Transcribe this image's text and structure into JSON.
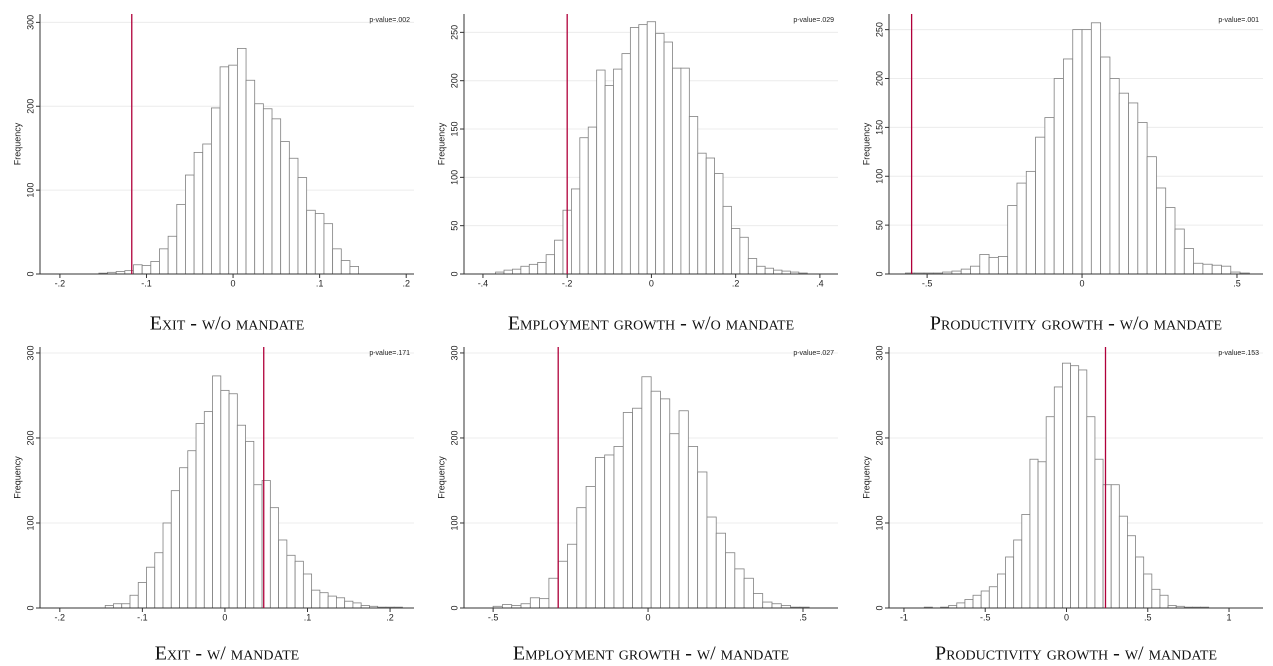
{
  "chart_data": [
    {
      "type": "histogram",
      "title": "Exit - w/o mandate",
      "ylabel": "Frequency",
      "annotation": "p-value=.002",
      "bins": [
        -0.155,
        -0.145,
        -0.135,
        -0.125,
        -0.115,
        -0.105,
        -0.095,
        -0.085,
        -0.075,
        -0.065,
        -0.055,
        -0.045,
        -0.035,
        -0.025,
        -0.015,
        -0.005,
        0.005,
        0.015,
        0.025,
        0.035,
        0.045,
        0.055,
        0.065,
        0.075,
        0.085,
        0.095,
        0.105,
        0.115,
        0.125,
        0.135,
        0.145
      ],
      "values": [
        1,
        2,
        3,
        4,
        11,
        10,
        15,
        30,
        45,
        83,
        118,
        145,
        155,
        198,
        247,
        249,
        269,
        231,
        203,
        197,
        185,
        158,
        138,
        115,
        76,
        72,
        60,
        30,
        16,
        9
      ],
      "vline": -0.117,
      "xlim": [
        -0.223,
        0.209
      ],
      "xticks": [
        {
          "value": -0.2,
          "label": "-.2"
        },
        {
          "value": -0.1,
          "label": "-.1"
        },
        0,
        {
          "value": 0.1,
          "label": ".1"
        },
        {
          "value": 0.2,
          "label": ".2"
        }
      ],
      "ylim": [
        0,
        310
      ],
      "yticks": [
        0,
        100,
        200,
        300
      ],
      "grid": true,
      "color": "#ffffff",
      "edge_color": "#808080",
      "line_color": "#b0003a"
    },
    {
      "type": "histogram",
      "title": "Employment growth - w/o mandate",
      "ylabel": "Frequency",
      "annotation": "p-value=.029",
      "bins": [
        -0.37,
        -0.35,
        -0.33,
        -0.31,
        -0.29,
        -0.27,
        -0.25,
        -0.23,
        -0.21,
        -0.19,
        -0.17,
        -0.15,
        -0.13,
        -0.11,
        -0.09,
        -0.07,
        -0.05,
        -0.03,
        -0.01,
        0.01,
        0.03,
        0.05,
        0.07,
        0.09,
        0.11,
        0.13,
        0.15,
        0.17,
        0.19,
        0.21,
        0.23,
        0.25,
        0.27,
        0.29,
        0.31,
        0.33,
        0.35,
        0.37
      ],
      "values": [
        2,
        4,
        5,
        8,
        10,
        12,
        20,
        35,
        66,
        88,
        141,
        152,
        211,
        195,
        212,
        228,
        255,
        258,
        261,
        249,
        240,
        213,
        213,
        163,
        125,
        120,
        104,
        70,
        47,
        38,
        16,
        8,
        6,
        4,
        3,
        2,
        1
      ],
      "vline": -0.2,
      "xlim": [
        -0.445,
        0.443
      ],
      "xticks": [
        {
          "value": -0.4,
          "label": "-.4"
        },
        {
          "value": -0.2,
          "label": "-.2"
        },
        0,
        {
          "value": 0.2,
          "label": ".2"
        },
        {
          "value": 0.4,
          "label": ".4"
        }
      ],
      "ylim": [
        0,
        269
      ],
      "yticks": [
        0,
        50,
        100,
        150,
        200,
        250
      ],
      "grid": true,
      "color": "#ffffff",
      "edge_color": "#808080",
      "line_color": "#b0003a"
    },
    {
      "type": "histogram",
      "title": "Productivity growth - w/o mandate",
      "ylabel": "Frequency",
      "annotation": "p-value=.001",
      "bins": [
        -0.6,
        -0.57,
        -0.54,
        -0.51,
        -0.48,
        -0.45,
        -0.42,
        -0.39,
        -0.36,
        -0.33,
        -0.3,
        -0.27,
        -0.24,
        -0.21,
        -0.18,
        -0.15,
        -0.12,
        -0.09,
        -0.06,
        -0.03,
        0,
        0.03,
        0.06,
        0.09,
        0.12,
        0.15,
        0.18,
        0.21,
        0.24,
        0.27,
        0.3,
        0.33,
        0.36,
        0.39,
        0.42,
        0.45,
        0.48,
        0.51,
        0.54
      ],
      "values": [
        0,
        1,
        1,
        1,
        1,
        2,
        3,
        5,
        8,
        20,
        17,
        18,
        70,
        93,
        105,
        140,
        160,
        200,
        220,
        250,
        250,
        257,
        222,
        200,
        185,
        175,
        155,
        120,
        88,
        68,
        46,
        26,
        11,
        10,
        9,
        8,
        2,
        1
      ],
      "vline": -0.55,
      "xlim": [
        -0.623,
        0.584
      ],
      "xticks": [
        {
          "value": -0.5,
          "label": "-.5"
        },
        0,
        {
          "value": 0.5,
          "label": ".5"
        }
      ],
      "ylim": [
        0,
        266
      ],
      "yticks": [
        0,
        50,
        100,
        150,
        200,
        250
      ],
      "grid": true,
      "color": "#ffffff",
      "edge_color": "#808080",
      "line_color": "#b0003a"
    },
    {
      "type": "histogram",
      "title": "Exit - w/ mandate",
      "ylabel": "Frequency",
      "annotation": "p-value=.171",
      "bins": [
        -0.145,
        -0.135,
        -0.125,
        -0.115,
        -0.105,
        -0.095,
        -0.085,
        -0.075,
        -0.065,
        -0.055,
        -0.045,
        -0.035,
        -0.025,
        -0.015,
        -0.005,
        0.005,
        0.015,
        0.025,
        0.035,
        0.045,
        0.055,
        0.065,
        0.075,
        0.085,
        0.095,
        0.105,
        0.115,
        0.125,
        0.135,
        0.145,
        0.155,
        0.165,
        0.175,
        0.185,
        0.195,
        0.205,
        0.215
      ],
      "values": [
        3,
        5,
        5,
        15,
        30,
        48,
        65,
        100,
        138,
        165,
        185,
        217,
        231,
        273,
        256,
        252,
        215,
        196,
        145,
        150,
        118,
        80,
        62,
        55,
        40,
        21,
        18,
        14,
        12,
        8,
        6,
        3,
        2,
        1,
        1,
        1
      ],
      "vline": 0.047,
      "xlim": [
        -0.224,
        0.229
      ],
      "xticks": [
        {
          "value": -0.2,
          "label": "-.2"
        },
        {
          "value": -0.1,
          "label": "-.1"
        },
        0,
        {
          "value": 0.1,
          "label": ".1"
        },
        {
          "value": 0.2,
          "label": ".2"
        }
      ],
      "ylim": [
        0,
        307
      ],
      "yticks": [
        0,
        100,
        200,
        300
      ],
      "grid": true,
      "color": "#ffffff",
      "edge_color": "#808080",
      "line_color": "#b0003a"
    },
    {
      "type": "histogram",
      "title": "Employment growth - w/ mandate",
      "ylabel": "Frequency",
      "annotation": "p-value=.027",
      "bins": [
        -0.5,
        -0.47,
        -0.44,
        -0.41,
        -0.38,
        -0.35,
        -0.32,
        -0.29,
        -0.26,
        -0.23,
        -0.2,
        -0.17,
        -0.14,
        -0.11,
        -0.08,
        -0.05,
        -0.02,
        0.01,
        0.04,
        0.07,
        0.1,
        0.13,
        0.16,
        0.19,
        0.22,
        0.25,
        0.28,
        0.31,
        0.34,
        0.37,
        0.4,
        0.43,
        0.46,
        0.49,
        0.52
      ],
      "values": [
        2,
        4,
        3,
        5,
        12,
        11,
        35,
        55,
        75,
        118,
        143,
        177,
        180,
        190,
        230,
        235,
        272,
        255,
        246,
        205,
        232,
        190,
        160,
        107,
        88,
        65,
        46,
        35,
        17,
        7,
        5,
        3,
        1,
        1
      ],
      "vline": -0.29,
      "xlim": [
        -0.594,
        0.613
      ],
      "xticks": [
        {
          "value": -0.5,
          "label": "-.5"
        },
        0,
        {
          "value": 0.5,
          "label": ".5"
        }
      ],
      "ylim": [
        0,
        307
      ],
      "yticks": [
        0,
        100,
        200,
        300
      ],
      "grid": true,
      "color": "#ffffff",
      "edge_color": "#808080",
      "line_color": "#b0003a"
    },
    {
      "type": "histogram",
      "title": "Productivity growth - w/ mandate",
      "ylabel": "Frequency",
      "annotation": "p-value=.153",
      "bins": [
        -0.875,
        -0.825,
        -0.775,
        -0.725,
        -0.675,
        -0.625,
        -0.575,
        -0.525,
        -0.475,
        -0.425,
        -0.375,
        -0.325,
        -0.275,
        -0.225,
        -0.175,
        -0.125,
        -0.075,
        -0.025,
        0.025,
        0.075,
        0.125,
        0.175,
        0.225,
        0.275,
        0.325,
        0.375,
        0.425,
        0.475,
        0.525,
        0.575,
        0.625,
        0.675,
        0.725,
        0.775,
        0.825,
        0.875
      ],
      "values": [
        1,
        0,
        1,
        3,
        6,
        10,
        15,
        20,
        25,
        40,
        60,
        80,
        110,
        175,
        172,
        225,
        260,
        288,
        285,
        280,
        225,
        175,
        145,
        145,
        108,
        85,
        60,
        40,
        22,
        15,
        3,
        2,
        1,
        1,
        1
      ],
      "vline": 0.24,
      "xlim": [
        -1.092,
        1.209
      ],
      "xticks": [
        -1,
        {
          "value": -0.5,
          "label": "-.5"
        },
        0,
        {
          "value": 0.5,
          "label": ".5"
        },
        1
      ],
      "ylim": [
        0,
        307
      ],
      "yticks": [
        0,
        100,
        200,
        300
      ],
      "grid": true,
      "color": "#ffffff",
      "edge_color": "#808080",
      "line_color": "#b0003a"
    }
  ]
}
